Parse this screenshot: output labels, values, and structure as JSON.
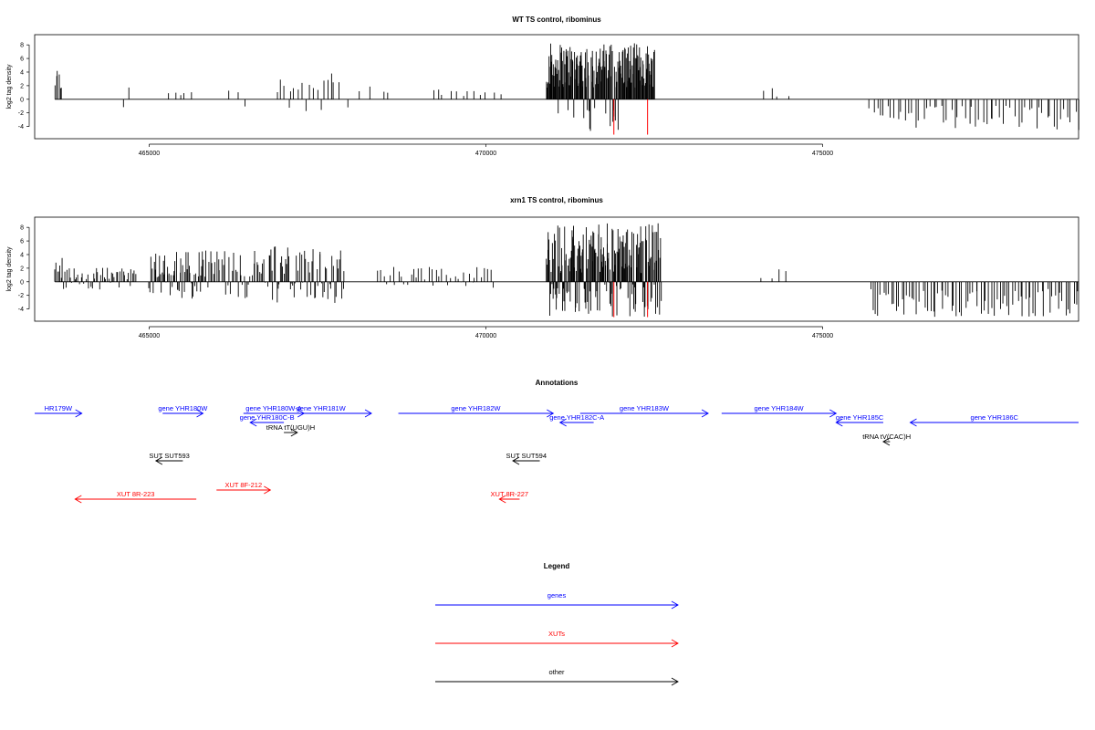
{
  "chart_data": [
    {
      "type": "bar",
      "title": "WT TS control, ribominus",
      "ylabel": "log2 tag density",
      "xlabel": "",
      "xlim": [
        463300,
        478800
      ],
      "ylim": [
        -5.8,
        9.5
      ],
      "x_ticks": [
        465000,
        470000,
        475000
      ],
      "y_ticks": [
        -4,
        -2,
        0,
        2,
        4,
        6,
        8
      ],
      "grid": false,
      "regions": [
        {
          "x0": 463600,
          "x1": 463700,
          "ymax": 4.6,
          "density": 6,
          "minus": false
        },
        {
          "x0": 464600,
          "x1": 464700,
          "ymax": 2.2,
          "density": 2,
          "minus": false
        },
        {
          "x0": 465300,
          "x1": 465600,
          "ymax": 1.8,
          "density": 5,
          "minus": false
        },
        {
          "x0": 466200,
          "x1": 466400,
          "ymax": 2.3,
          "density": 3,
          "minus": false
        },
        {
          "x0": 466900,
          "x1": 467800,
          "ymax": 3.8,
          "density": 18,
          "minus": false
        },
        {
          "x0": 468000,
          "x1": 468600,
          "ymax": 2.1,
          "density": 5,
          "minus": false
        },
        {
          "x0": 469200,
          "x1": 470200,
          "ymax": 1.6,
          "density": 12,
          "minus": false
        },
        {
          "x0": 470900,
          "x1": 472500,
          "ymax": 8.3,
          "density": 180,
          "minus": false
        },
        {
          "x0": 474100,
          "x1": 474500,
          "ymax": 2.0,
          "density": 4,
          "minus": false
        },
        {
          "x0": 475700,
          "x1": 478800,
          "ymax": -4.6,
          "density": 60,
          "minus": true
        }
      ],
      "marks": [
        471900,
        472400
      ]
    },
    {
      "type": "bar",
      "title": "xrn1 TS control, ribominus",
      "ylabel": "log2 tag density",
      "xlabel": "",
      "xlim": [
        463300,
        478800
      ],
      "ylim": [
        -5.8,
        9.5
      ],
      "x_ticks": [
        465000,
        470000,
        475000
      ],
      "y_ticks": [
        -4,
        -2,
        0,
        2,
        4,
        6,
        8
      ],
      "grid": false,
      "regions": [
        {
          "x0": 463600,
          "x1": 463700,
          "ymax": 4.2,
          "density": 6,
          "minus": false
        },
        {
          "x0": 463700,
          "x1": 464800,
          "ymax": 2.1,
          "density": 50,
          "minus": "both"
        },
        {
          "x0": 465000,
          "x1": 465800,
          "ymax": 4.5,
          "density": 55,
          "minus": "both"
        },
        {
          "x0": 465800,
          "x1": 466800,
          "ymax": 4.8,
          "density": 45,
          "minus": "both"
        },
        {
          "x0": 466800,
          "x1": 467900,
          "ymax": 5.2,
          "density": 60,
          "minus": "both"
        },
        {
          "x0": 468400,
          "x1": 470100,
          "ymax": 2.2,
          "density": 40,
          "minus": "both"
        },
        {
          "x0": 470900,
          "x1": 472600,
          "ymax": 8.6,
          "density": 200,
          "minus": "both"
        },
        {
          "x0": 474100,
          "x1": 474500,
          "ymax": 2.0,
          "density": 4,
          "minus": false
        },
        {
          "x0": 475700,
          "x1": 478800,
          "ymax": -5.2,
          "density": 80,
          "minus": true
        }
      ],
      "marks": [
        471900,
        472400
      ]
    }
  ],
  "annotations": {
    "title": "Annotations",
    "items": [
      {
        "label": "HR179W",
        "x0": 463300,
        "x1": 464000,
        "row": 0,
        "dir": 1,
        "kind": "gene"
      },
      {
        "label": "gene YHR180W",
        "x0": 465200,
        "x1": 465800,
        "row": 0,
        "dir": 1,
        "kind": "gene"
      },
      {
        "label": "gene YHR180W-A",
        "x0": 466400,
        "x1": 467300,
        "row": 0,
        "dir": 1,
        "kind": "gene"
      },
      {
        "label": "gene YHR181W",
        "x0": 466800,
        "x1": 468300,
        "row": 0,
        "dir": 1,
        "kind": "gene"
      },
      {
        "label": "gene YHR182W",
        "x0": 468700,
        "x1": 471000,
        "row": 0,
        "dir": 1,
        "kind": "gene"
      },
      {
        "label": "gene YHR183W",
        "x0": 471400,
        "x1": 473300,
        "row": 0,
        "dir": 1,
        "kind": "gene"
      },
      {
        "label": "gene YHR184W",
        "x0": 473500,
        "x1": 475200,
        "row": 0,
        "dir": 1,
        "kind": "gene"
      },
      {
        "label": "gene YHR180C-B",
        "x0": 466500,
        "x1": 467000,
        "row": 1,
        "dir": -1,
        "kind": "gene"
      },
      {
        "label": "gene YHR182C-A",
        "x0": 471100,
        "x1": 471600,
        "row": 1,
        "dir": -1,
        "kind": "gene"
      },
      {
        "label": "gene YHR185C",
        "x0": 475200,
        "x1": 475900,
        "row": 1,
        "dir": -1,
        "kind": "gene"
      },
      {
        "label": "gene YHR186C",
        "x0": 476300,
        "x1": 478800,
        "row": 1,
        "dir": -1,
        "kind": "gene"
      },
      {
        "label": "tRNA tT(UGU)H",
        "x0": 467000,
        "x1": 467200,
        "row": 2,
        "dir": 1,
        "kind": "other"
      },
      {
        "label": "tRNA tV(CAC)H",
        "x0": 475900,
        "x1": 476000,
        "row": 3,
        "dir": -1,
        "kind": "other"
      },
      {
        "label": "SUT SUT593",
        "x0": 465100,
        "x1": 465500,
        "row": 4,
        "dir": -1,
        "kind": "other"
      },
      {
        "label": "SUT SUT594",
        "x0": 470400,
        "x1": 470800,
        "row": 4,
        "dir": -1,
        "kind": "other"
      },
      {
        "label": "XUT 8F-212",
        "x0": 466000,
        "x1": 466800,
        "row": 5,
        "dir": 1,
        "kind": "xut"
      },
      {
        "label": "XUT 8R-223",
        "x0": 463900,
        "x1": 465700,
        "row": 6,
        "dir": -1,
        "kind": "xut"
      },
      {
        "label": "XUT 8R-227",
        "x0": 470200,
        "x1": 470500,
        "row": 6,
        "dir": -1,
        "kind": "xut"
      }
    ]
  },
  "legend": {
    "title": "Legend",
    "entries": [
      {
        "label": "genes",
        "kind": "gene"
      },
      {
        "label": "XUTs",
        "kind": "xut"
      },
      {
        "label": "other",
        "kind": "other"
      }
    ]
  },
  "colors": {
    "gene": "#0000ff",
    "xut": "#ff0000",
    "other": "#000000",
    "mark": "#ff0000"
  }
}
